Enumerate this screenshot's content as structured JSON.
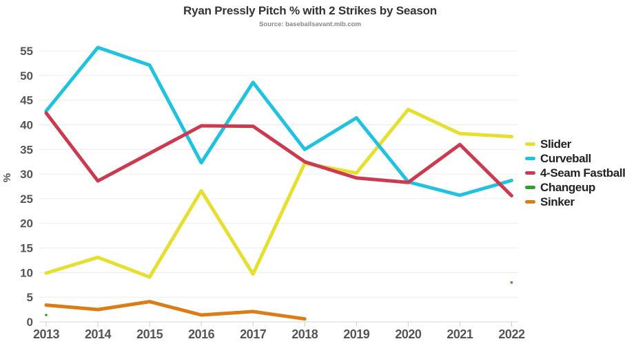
{
  "header": {
    "title": "Ryan Pressly Pitch % with 2 Strikes by Season",
    "subtitle": "Source: baseballsavant.mlb.com"
  },
  "chart_data": {
    "type": "line",
    "title": "Ryan Pressly Pitch % with 2 Strikes by Season",
    "subtitle": "Source: baseballsavant.mlb.com",
    "xlabel": "",
    "ylabel": "%",
    "x": [
      2013,
      2014,
      2015,
      2016,
      2017,
      2018,
      2019,
      2020,
      2021,
      2022
    ],
    "ylim": [
      0,
      57.5
    ],
    "yticks": [
      0,
      5,
      10,
      15,
      20,
      25,
      30,
      35,
      40,
      45,
      50,
      55
    ],
    "grid": "horizontal",
    "legend_position": "right",
    "series": [
      {
        "name": "Slider",
        "color": "#e6df2e",
        "values": [
          9.9,
          13.1,
          9.1,
          26.6,
          9.7,
          32.2,
          30.2,
          43.1,
          38.2,
          37.6
        ]
      },
      {
        "name": "Curveball",
        "color": "#1fc3e0",
        "values": [
          42.8,
          55.7,
          52.1,
          32.3,
          48.6,
          35.0,
          41.4,
          28.4,
          25.7,
          28.7
        ]
      },
      {
        "name": "4-Seam Fastball",
        "color": "#cc3a50",
        "values": [
          42.4,
          28.6,
          34.2,
          39.8,
          39.7,
          32.5,
          29.2,
          28.3,
          36.0,
          25.6
        ]
      },
      {
        "name": "Changeup",
        "color": "#2ca02c",
        "values": [
          1.4,
          null,
          null,
          null,
          null,
          null,
          null,
          null,
          null,
          8.0
        ]
      },
      {
        "name": "Sinker",
        "color": "#dd7b14",
        "values": [
          3.4,
          2.5,
          4.1,
          1.4,
          2.1,
          0.6,
          null,
          null,
          null,
          null
        ]
      }
    ],
    "style": {
      "grid_color": "#ececec",
      "axis_line_color": "#dcdcdc",
      "tick_color": "#cfcfcf",
      "line_width": 5
    }
  }
}
